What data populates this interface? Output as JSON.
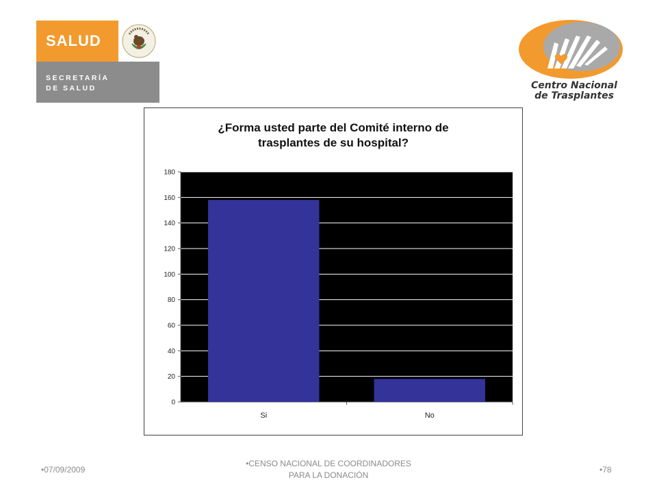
{
  "logos": {
    "salud": {
      "name": "SALUD",
      "subtitle": "SECRETARÍA\nDE SALUD",
      "seal_text": "ESTADOS UNIDOS MEXICANOS",
      "orange": "#f29a2e",
      "grey": "#8c8c8c"
    },
    "cenatra": {
      "name": "Centro Nacional\nde Trasplantes",
      "orange": "#f29a2e",
      "grey": "#9a9a9a"
    }
  },
  "chart_data": {
    "type": "bar",
    "title": "¿Forma usted parte del Comité interno de\ntrasplantes de su hospital?",
    "categories": [
      "Si",
      "No"
    ],
    "values": [
      158,
      18
    ],
    "ylim": [
      0,
      180
    ],
    "yticks": [
      0,
      20,
      40,
      60,
      80,
      100,
      120,
      140,
      160,
      180
    ],
    "grid": true,
    "legend": "none",
    "bar_color": "#333399",
    "plot_background": "#000000",
    "gridline_color": "#ffffff"
  },
  "footer": {
    "bullet": "•",
    "date": "07/09/2009",
    "center": "CENSO NACIONAL DE COORDINADORES\nPARA LA DONACIÓN",
    "page": "78"
  }
}
